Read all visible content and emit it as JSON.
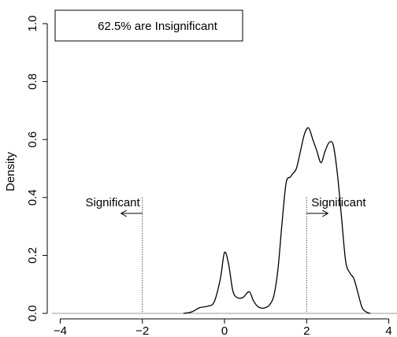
{
  "chart_data": {
    "type": "area",
    "title": "",
    "xlabel": "",
    "ylabel": "Density",
    "xlim": [
      -4.2,
      4.2
    ],
    "ylim": [
      0.0,
      1.0
    ],
    "xticks": [
      -4,
      -2,
      0,
      2,
      4
    ],
    "yticks": [
      0.0,
      0.2,
      0.4,
      0.6,
      0.8,
      1.0
    ],
    "xtick_labels": [
      "−4",
      "−2",
      "0",
      "2",
      "4"
    ],
    "ytick_labels": [
      "0.0",
      "0.2",
      "0.4",
      "0.6",
      "0.8",
      "1.0"
    ],
    "grid": false,
    "legend_position": "top-left",
    "legend_text": "62.5% are Insignificant",
    "series": [
      {
        "x": [
          -1.0,
          -0.8,
          -0.6,
          -0.4,
          -0.25,
          -0.1,
          0.0,
          0.1,
          0.2,
          0.3,
          0.45,
          0.6,
          0.7,
          0.8,
          0.9,
          1.0,
          1.1,
          1.2,
          1.3,
          1.4,
          1.5,
          1.6,
          1.65,
          1.75,
          1.85,
          1.95,
          2.05,
          2.15,
          2.25,
          2.35,
          2.45,
          2.55,
          2.65,
          2.75,
          2.85,
          2.95,
          3.05,
          3.15,
          3.25,
          3.35,
          3.45,
          3.55
        ],
        "y": [
          0.0,
          0.005,
          0.02,
          0.025,
          0.04,
          0.12,
          0.21,
          0.17,
          0.08,
          0.055,
          0.055,
          0.075,
          0.045,
          0.025,
          0.018,
          0.02,
          0.03,
          0.06,
          0.15,
          0.31,
          0.45,
          0.47,
          0.48,
          0.5,
          0.56,
          0.62,
          0.64,
          0.6,
          0.56,
          0.52,
          0.56,
          0.59,
          0.58,
          0.48,
          0.33,
          0.18,
          0.14,
          0.12,
          0.07,
          0.02,
          0.005,
          0.0
        ]
      }
    ],
    "annotations": [
      {
        "text": "Significant",
        "x": -2,
        "direction": "left"
      },
      {
        "text": "Significant",
        "x": 2,
        "direction": "right"
      }
    ],
    "threshold_lines": [
      -2,
      2
    ],
    "threshold_top": 0.4,
    "arrow_y": 0.345,
    "label_y": 0.37,
    "baseline": 0.0
  }
}
